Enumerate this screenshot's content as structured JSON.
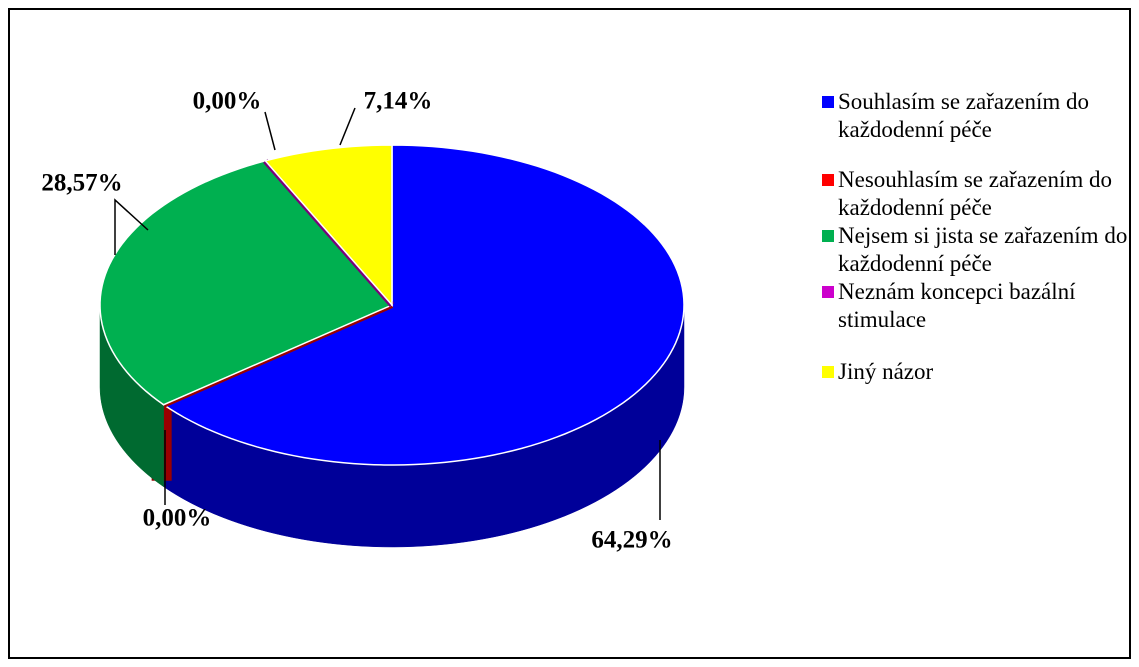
{
  "chart_data": {
    "type": "pie",
    "categories": [
      "Souhlasím se zařazením do každodenní péče",
      "Nesouhlasím se zařazením do každodenní péče",
      "Nejsem si jista se zařazením do každodenní péče",
      "Neznám koncepci bazální stimulace",
      "Jiný názor"
    ],
    "values": [
      64.29,
      0.0,
      28.57,
      0.0,
      7.14
    ],
    "value_labels": [
      "64,29%",
      "0,00%",
      "28,57%",
      "0,00%",
      "7,14%"
    ],
    "colors": [
      "#0000ff",
      "#ff0000",
      "#00b050",
      "#cc00cc",
      "#ffff00"
    ],
    "legend": "right"
  }
}
